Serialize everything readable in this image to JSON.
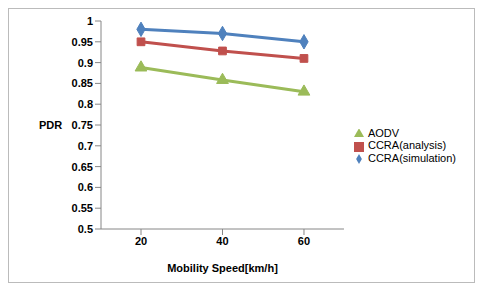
{
  "chart_data": {
    "type": "line",
    "x_label": "Mobility Speed[km/h]",
    "y_label": "PDR",
    "categories": [
      "20",
      "40",
      "60"
    ],
    "series": [
      {
        "name": "CCRA(simulation)",
        "color": "#4f81bd",
        "marker": "diamond",
        "values": [
          0.98,
          0.97,
          0.95
        ]
      },
      {
        "name": "CCRA(analysis)",
        "color": "#c0504d",
        "marker": "square",
        "values": [
          0.95,
          0.928,
          0.91
        ]
      },
      {
        "name": "AODV",
        "color": "#9bbb59",
        "marker": "triangle",
        "values": [
          0.888,
          0.858,
          0.83
        ]
      }
    ],
    "ylim": [
      0.5,
      1
    ],
    "yticks": [
      0.5,
      0.55,
      0.6,
      0.65,
      0.7,
      0.75,
      0.8,
      0.85,
      0.9,
      0.95,
      1
    ],
    "grid": false,
    "legend": "right"
  }
}
